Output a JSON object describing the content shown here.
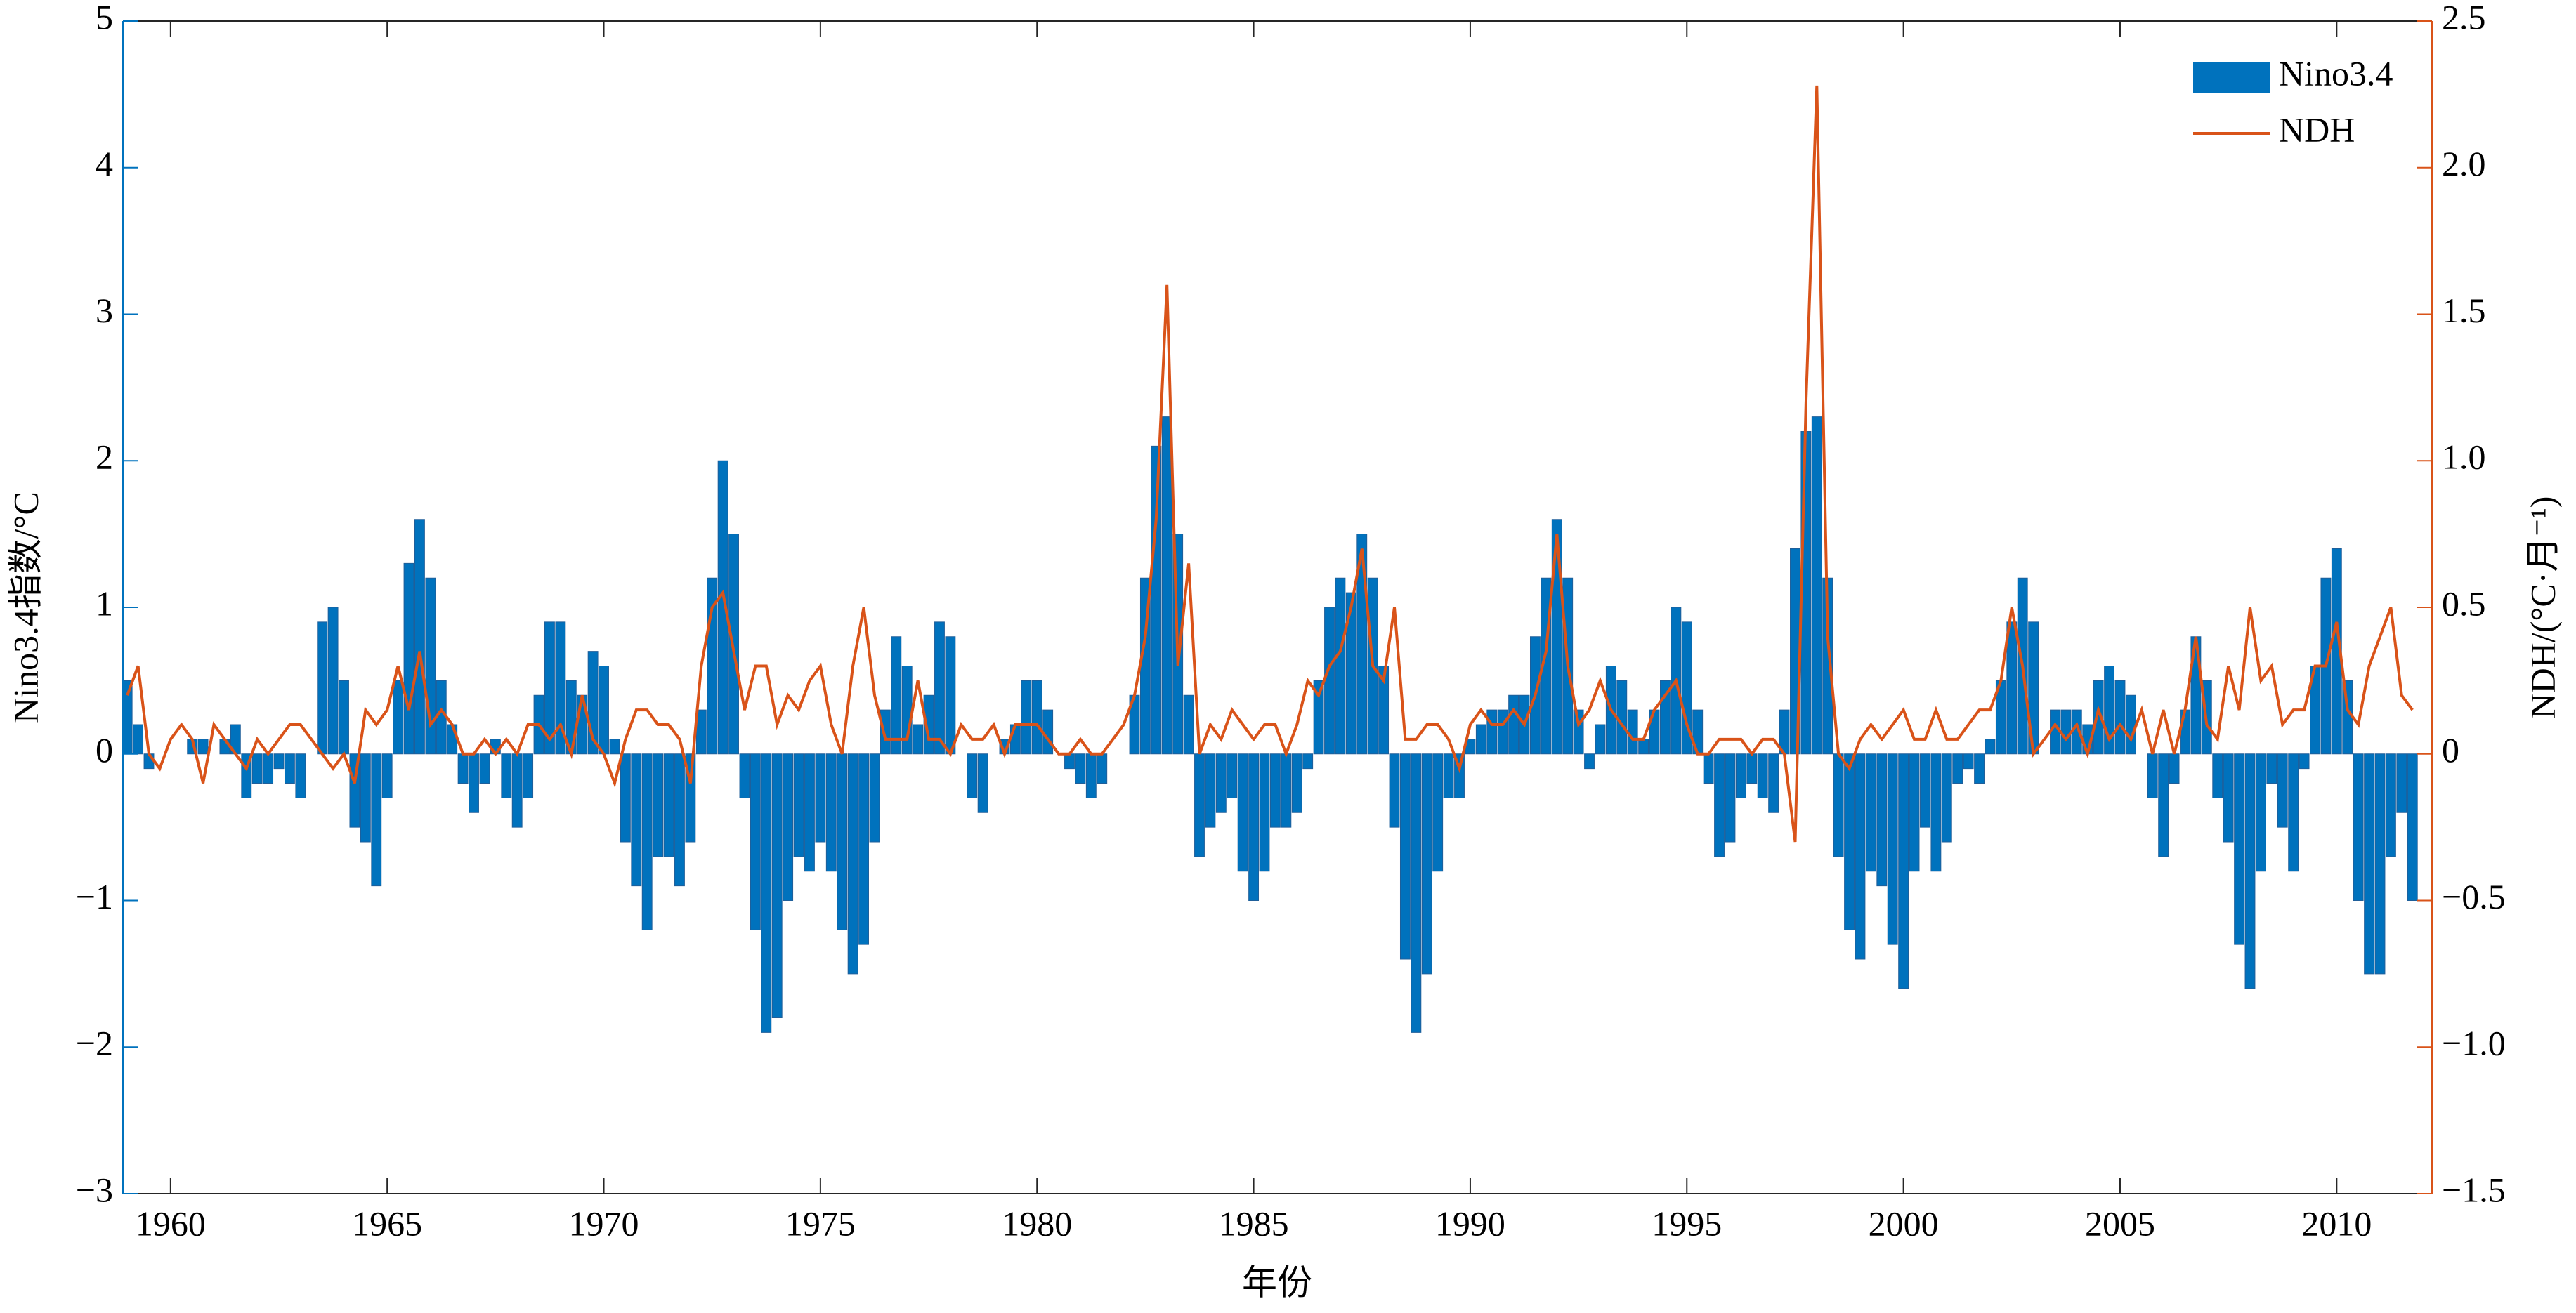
{
  "chart_data": {
    "type": "bar",
    "x_label": "年份",
    "y_label": "Nino3.4指数/°C",
    "y2_label": "NDH/(°C·月⁻¹)",
    "legend": "upper right",
    "xlim": [
      1958.9,
      2012.2
    ],
    "xticks": [
      1960,
      1965,
      1970,
      1975,
      1980,
      1985,
      1990,
      1995,
      2000,
      2005,
      2010
    ],
    "ylim": [
      -3,
      5
    ],
    "yticks": [
      {
        "value": -3,
        "label": "−3"
      },
      {
        "value": -2,
        "label": "−2"
      },
      {
        "value": -1,
        "label": "−1"
      },
      0,
      1,
      2,
      3,
      4,
      5
    ],
    "y2lim": [
      -1.5,
      2.5
    ],
    "y2ticks": [
      {
        "value": -1.5,
        "label": "−1.5"
      },
      {
        "value": -1,
        "label": "−1.0"
      },
      {
        "value": -0.5,
        "label": "−0.5"
      },
      0,
      0.5,
      {
        "value": 1,
        "label": "1.0"
      },
      1.5,
      {
        "value": 2,
        "label": "2.0"
      },
      2.5
    ],
    "x": [
      1959,
      1959.25,
      1959.5,
      1959.75,
      1960,
      1960.25,
      1960.5,
      1960.75,
      1961,
      1961.25,
      1961.5,
      1961.75,
      1962,
      1962.25,
      1962.5,
      1962.75,
      1963,
      1963.25,
      1963.5,
      1963.75,
      1964,
      1964.25,
      1964.5,
      1964.75,
      1965,
      1965.25,
      1965.5,
      1965.75,
      1966,
      1966.25,
      1966.5,
      1966.75,
      1967,
      1967.25,
      1967.5,
      1967.75,
      1968,
      1968.25,
      1968.5,
      1968.75,
      1969,
      1969.25,
      1969.5,
      1969.75,
      1970,
      1970.25,
      1970.5,
      1970.75,
      1971,
      1971.25,
      1971.5,
      1971.75,
      1972,
      1972.25,
      1972.5,
      1972.75,
      1973,
      1973.25,
      1973.5,
      1973.75,
      1974,
      1974.25,
      1974.5,
      1974.75,
      1975,
      1975.25,
      1975.5,
      1975.75,
      1976,
      1976.25,
      1976.5,
      1976.75,
      1977,
      1977.25,
      1977.5,
      1977.75,
      1978,
      1978.25,
      1978.5,
      1978.75,
      1979,
      1979.25,
      1979.5,
      1979.75,
      1980,
      1980.25,
      1980.5,
      1980.75,
      1981,
      1981.25,
      1981.5,
      1981.75,
      1982,
      1982.25,
      1982.5,
      1982.75,
      1983,
      1983.25,
      1983.5,
      1983.75,
      1984,
      1984.25,
      1984.5,
      1984.75,
      1985,
      1985.25,
      1985.5,
      1985.75,
      1986,
      1986.25,
      1986.5,
      1986.75,
      1987,
      1987.25,
      1987.5,
      1987.75,
      1988,
      1988.25,
      1988.5,
      1988.75,
      1989,
      1989.25,
      1989.5,
      1989.75,
      1990,
      1990.25,
      1990.5,
      1990.75,
      1991,
      1991.25,
      1991.5,
      1991.75,
      1992,
      1992.25,
      1992.5,
      1992.75,
      1993,
      1993.25,
      1993.5,
      1993.75,
      1994,
      1994.25,
      1994.5,
      1994.75,
      1995,
      1995.25,
      1995.5,
      1995.75,
      1996,
      1996.25,
      1996.5,
      1996.75,
      1997,
      1997.25,
      1997.5,
      1997.75,
      1998,
      1998.25,
      1998.5,
      1998.75,
      1999,
      1999.25,
      1999.5,
      1999.75,
      2000,
      2000.25,
      2000.5,
      2000.75,
      2001,
      2001.25,
      2001.5,
      2001.75,
      2002,
      2002.25,
      2002.5,
      2002.75,
      2003,
      2003.25,
      2003.5,
      2003.75,
      2004,
      2004.25,
      2004.5,
      2004.75,
      2005,
      2005.25,
      2005.5,
      2005.75,
      2006,
      2006.25,
      2006.5,
      2006.75,
      2007,
      2007.25,
      2007.5,
      2007.75,
      2008,
      2008.25,
      2008.5,
      2008.75,
      2009,
      2009.25,
      2009.5,
      2009.75,
      2010,
      2010.25,
      2010.5,
      2010.75,
      2011,
      2011.25,
      2011.5,
      2011.75
    ],
    "series": [
      {
        "name": "Nino3.4",
        "type": "bar",
        "color": "#0072BD",
        "values": [
          0.5,
          0.2,
          -0.1,
          0.0,
          0.0,
          0.0,
          0.1,
          0.1,
          0.0,
          0.1,
          0.2,
          -0.3,
          -0.2,
          -0.2,
          -0.1,
          -0.2,
          -0.3,
          0.0,
          0.9,
          1.0,
          0.5,
          -0.5,
          -0.6,
          -0.9,
          -0.3,
          0.5,
          1.3,
          1.6,
          1.2,
          0.5,
          0.2,
          -0.2,
          -0.4,
          -0.2,
          0.1,
          -0.3,
          -0.5,
          -0.3,
          0.4,
          0.9,
          0.9,
          0.5,
          0.4,
          0.7,
          0.6,
          0.1,
          -0.6,
          -0.9,
          -1.2,
          -0.7,
          -0.7,
          -0.9,
          -0.6,
          0.3,
          1.2,
          2.0,
          1.5,
          -0.3,
          -1.2,
          -1.9,
          -1.8,
          -1.0,
          -0.7,
          -0.8,
          -0.6,
          -0.8,
          -1.2,
          -1.5,
          -1.3,
          -0.6,
          0.3,
          0.8,
          0.6,
          0.2,
          0.4,
          0.9,
          0.8,
          0.0,
          -0.3,
          -0.4,
          0.0,
          0.1,
          0.2,
          0.5,
          0.5,
          0.3,
          0.0,
          -0.1,
          -0.2,
          -0.3,
          -0.2,
          0.0,
          0.0,
          0.4,
          1.2,
          2.1,
          2.3,
          1.5,
          0.4,
          -0.7,
          -0.5,
          -0.4,
          -0.3,
          -0.8,
          -1.0,
          -0.8,
          -0.5,
          -0.5,
          -0.4,
          -0.1,
          0.5,
          1.0,
          1.2,
          1.1,
          1.5,
          1.2,
          0.6,
          -0.5,
          -1.4,
          -1.9,
          -1.5,
          -0.8,
          -0.3,
          -0.3,
          0.1,
          0.2,
          0.3,
          0.3,
          0.4,
          0.4,
          0.8,
          1.2,
          1.6,
          1.2,
          0.3,
          -0.1,
          0.2,
          0.6,
          0.5,
          0.3,
          0.1,
          0.3,
          0.5,
          1.0,
          0.9,
          0.3,
          -0.2,
          -0.7,
          -0.6,
          -0.3,
          -0.2,
          -0.3,
          -0.4,
          0.3,
          1.4,
          2.2,
          2.3,
          1.2,
          -0.7,
          -1.2,
          -1.4,
          -0.8,
          -0.9,
          -1.3,
          -1.6,
          -0.8,
          -0.5,
          -0.8,
          -0.6,
          -0.2,
          -0.1,
          -0.2,
          0.1,
          0.5,
          0.9,
          1.2,
          0.9,
          0.0,
          0.3,
          0.3,
          0.3,
          0.2,
          0.5,
          0.6,
          0.5,
          0.4,
          0.0,
          -0.3,
          -0.7,
          -0.2,
          0.3,
          0.8,
          0.5,
          -0.3,
          -0.6,
          -1.3,
          -1.6,
          -0.8,
          -0.2,
          -0.5,
          -0.8,
          -0.1,
          0.6,
          1.2,
          1.4,
          0.5,
          -1.0,
          -1.5,
          -1.5,
          -0.7,
          -0.4,
          -1.0
        ]
      },
      {
        "name": "NDH",
        "type": "line",
        "axis": "y2",
        "color": "#D95319",
        "values": [
          0.2,
          0.3,
          0.0,
          -0.05,
          0.05,
          0.1,
          0.05,
          -0.1,
          0.1,
          0.05,
          0.0,
          -0.05,
          0.05,
          0.0,
          0.05,
          0.1,
          0.1,
          0.05,
          0.0,
          -0.05,
          0.0,
          -0.1,
          0.15,
          0.1,
          0.15,
          0.3,
          0.15,
          0.35,
          0.1,
          0.15,
          0.1,
          0.0,
          0.0,
          0.05,
          0.0,
          0.05,
          0.0,
          0.1,
          0.1,
          0.05,
          0.1,
          0.0,
          0.2,
          0.05,
          0.0,
          -0.1,
          0.05,
          0.15,
          0.15,
          0.1,
          0.1,
          0.05,
          -0.1,
          0.3,
          0.5,
          0.55,
          0.35,
          0.15,
          0.3,
          0.3,
          0.1,
          0.2,
          0.15,
          0.25,
          0.3,
          0.1,
          0.0,
          0.3,
          0.5,
          0.2,
          0.05,
          0.05,
          0.05,
          0.25,
          0.05,
          0.05,
          0.0,
          0.1,
          0.05,
          0.05,
          0.1,
          0.0,
          0.1,
          0.1,
          0.1,
          0.05,
          0.0,
          0.0,
          0.05,
          0.0,
          0.0,
          0.05,
          0.1,
          0.2,
          0.4,
          0.8,
          1.6,
          0.3,
          0.65,
          0.0,
          0.1,
          0.05,
          0.15,
          0.1,
          0.05,
          0.1,
          0.1,
          0.0,
          0.1,
          0.25,
          0.2,
          0.3,
          0.35,
          0.5,
          0.7,
          0.3,
          0.25,
          0.5,
          0.05,
          0.05,
          0.1,
          0.1,
          0.05,
          -0.05,
          0.1,
          0.15,
          0.1,
          0.1,
          0.15,
          0.1,
          0.2,
          0.35,
          0.75,
          0.3,
          0.1,
          0.15,
          0.25,
          0.15,
          0.1,
          0.05,
          0.05,
          0.15,
          0.2,
          0.25,
          0.1,
          0.0,
          0.0,
          0.05,
          0.05,
          0.05,
          0.0,
          0.05,
          0.05,
          0.0,
          -0.3,
          1.2,
          2.28,
          0.4,
          0.0,
          -0.05,
          0.05,
          0.1,
          0.05,
          0.1,
          0.15,
          0.05,
          0.05,
          0.15,
          0.05,
          0.05,
          0.1,
          0.15,
          0.15,
          0.25,
          0.5,
          0.3,
          0.0,
          0.05,
          0.1,
          0.05,
          0.1,
          0.0,
          0.15,
          0.05,
          0.1,
          0.05,
          0.15,
          0.0,
          0.15,
          0.0,
          0.15,
          0.4,
          0.1,
          0.05,
          0.3,
          0.15,
          0.5,
          0.25,
          0.3,
          0.1,
          0.15,
          0.15,
          0.3,
          0.3,
          0.45,
          0.15,
          0.1,
          0.3,
          0.4,
          0.5,
          0.2,
          0.15
        ]
      }
    ]
  }
}
